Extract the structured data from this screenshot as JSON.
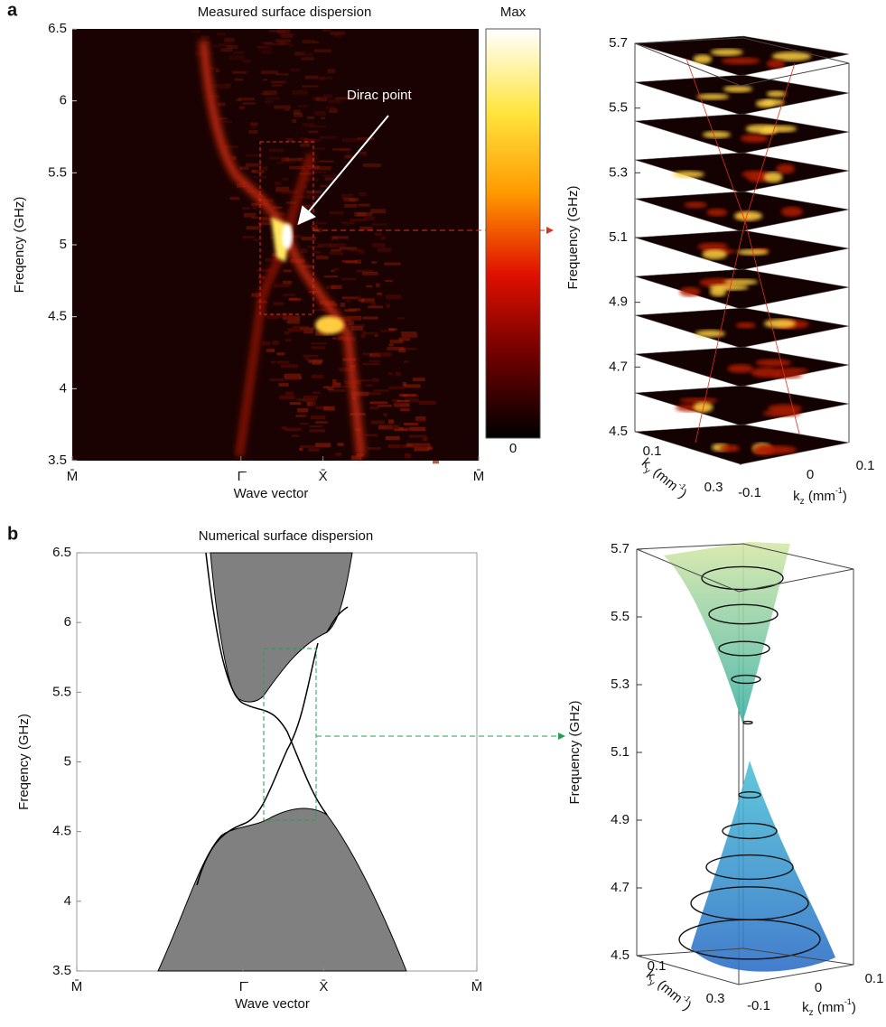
{
  "chart_data": [
    {
      "type": "heatmap",
      "panel": "a",
      "title": "Measured surface dispersion",
      "x_label": "Wave vector",
      "y_label": "Freqency (GHz)",
      "categories": [
        "M̄",
        "Γ̄",
        "X̄",
        "M̄"
      ],
      "ylim": [
        3.5,
        6.5
      ],
      "yticks": [
        3.5,
        4,
        4.5,
        5,
        5.5,
        6,
        6.5
      ],
      "annotation": "Dirac point",
      "colorbar": {
        "max_label": "Max",
        "min_label": 0
      },
      "colormap": [
        "#000000",
        "#6e0000",
        "#e01000",
        "#ff9a00",
        "#ffe640",
        "#ffffff"
      ]
    },
    {
      "type": "slices3d",
      "z_label": "Frequency (GHz)",
      "zlim": [
        4.5,
        5.7
      ],
      "zticks": [
        4.5,
        4.7,
        4.9,
        5.1,
        5.3,
        5.5,
        5.7
      ],
      "ky_label": {
        "base": "k",
        "sub": "y",
        "unit": " (mm",
        "exp": "-1",
        "close": ")"
      },
      "kyticks": [
        0.1,
        0.3
      ],
      "kz_label": {
        "base": "k",
        "sub": "z",
        "unit": " (mm",
        "exp": "-1",
        "close": ")"
      },
      "kzticks": [
        -0.1,
        0,
        0.1
      ]
    },
    {
      "type": "bands",
      "panel": "b",
      "title": "Numerical surface dispersion",
      "x_label": "Wave vector",
      "y_label": "Freqency (GHz)",
      "categories": [
        "M̄",
        "Γ̄",
        "X̄",
        "M̄"
      ],
      "ylim": [
        3.5,
        6.5
      ],
      "yticks": [
        3.5,
        4,
        4.5,
        5,
        5.5,
        6,
        6.5
      ],
      "band_color": "#808080"
    },
    {
      "type": "cone3d",
      "z_label": "Frequency (GHz)",
      "zlim": [
        4.5,
        5.7
      ],
      "zticks": [
        4.5,
        4.7,
        4.9,
        5.1,
        5.3,
        5.5,
        5.7
      ],
      "ky_label": {
        "base": "k",
        "sub": "y",
        "unit": " (mm",
        "exp": "-1",
        "close": ")"
      },
      "kyticks": [
        0.1,
        0.3
      ],
      "kz_label": {
        "base": "k",
        "sub": "z",
        "unit": " (mm",
        "exp": "-1",
        "close": ")"
      },
      "kzticks": [
        -0.1,
        0,
        0.1
      ]
    }
  ]
}
